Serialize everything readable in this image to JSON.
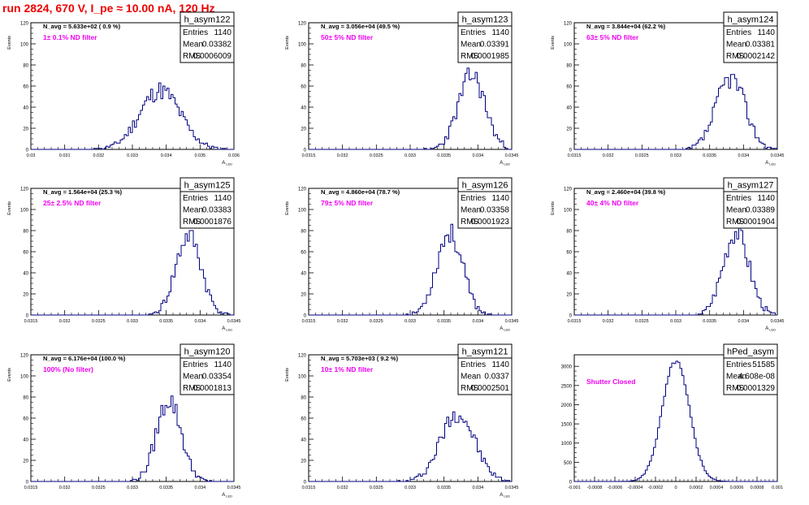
{
  "run_title": "run 2824,   670 V, I_pe ≈ 10.00 nA, 120 Hz",
  "colors": {
    "title": "#ee0000",
    "histogram": "#000080",
    "annotation": "#ee00ee",
    "axis": "#000000"
  },
  "chart_data": [
    {
      "type": "histogram",
      "name": "h_asym122",
      "entries": "1140",
      "mean": "0.03382",
      "rms": "0.0006009",
      "navg": "N_avg = 5.633e+02 ( 0.9 %)",
      "filter": "1± 0.1% ND filter",
      "xlabel": "A_LED",
      "ylabel": "Events",
      "xlim": [
        0.03,
        0.036
      ],
      "ylim": [
        0,
        120
      ],
      "xticks": [
        "0.03",
        "0.031",
        "0.032",
        "0.033",
        "0.034",
        "0.035",
        "0.036"
      ],
      "yticks": [
        "0",
        "20",
        "40",
        "60",
        "80",
        "100",
        "120"
      ],
      "center": 0.03382,
      "sigma": 0.0006009,
      "peak": 56,
      "seed": 11
    },
    {
      "type": "histogram",
      "name": "h_asym123",
      "entries": "1140",
      "mean": "0.03391",
      "rms": "0.0001985",
      "navg": "N_avg = 3.056e+04 (49.5 %)",
      "filter": "50± 5% ND filter",
      "xlabel": "A_LED",
      "ylabel": "Events",
      "xlim": [
        0.0315,
        0.0345
      ],
      "ylim": [
        0,
        120
      ],
      "xticks": [
        "0.0315",
        "0.032",
        "0.0325",
        "0.033",
        "0.0335",
        "0.034",
        "0.0345"
      ],
      "yticks": [
        "0",
        "20",
        "40",
        "60",
        "80",
        "100",
        "120"
      ],
      "center": 0.03391,
      "sigma": 0.0001985,
      "peak": 70,
      "seed": 23
    },
    {
      "type": "histogram",
      "name": "h_asym124",
      "entries": "1140",
      "mean": "0.03381",
      "rms": "0.0002142",
      "navg": "N_avg = 3.844e+04 (62.2 %)",
      "filter": "63± 5% ND filter",
      "xlabel": "A_LED",
      "ylabel": "Events",
      "xlim": [
        0.0315,
        0.0345
      ],
      "ylim": [
        0,
        120
      ],
      "xticks": [
        "0.0315",
        "0.032",
        "0.0325",
        "0.033",
        "0.0335",
        "0.034",
        "0.0345"
      ],
      "yticks": [
        "0",
        "20",
        "40",
        "60",
        "80",
        "100",
        "120"
      ],
      "center": 0.03381,
      "sigma": 0.0002142,
      "peak": 68,
      "seed": 37
    },
    {
      "type": "histogram",
      "name": "h_asym125",
      "entries": "1140",
      "mean": "0.03383",
      "rms": "0.0001876",
      "navg": "N_avg = 1.564e+04 (25.3 %)",
      "filter": "25± 2.5% ND filter",
      "xlabel": "A_LED",
      "ylabel": "Events",
      "xlim": [
        0.0315,
        0.0345
      ],
      "ylim": [
        0,
        120
      ],
      "xticks": [
        "0.0315",
        "0.032",
        "0.0325",
        "0.033",
        "0.0335",
        "0.034",
        "0.0345"
      ],
      "yticks": [
        "0",
        "20",
        "40",
        "60",
        "80",
        "100",
        "120"
      ],
      "center": 0.03383,
      "sigma": 0.0001876,
      "peak": 75,
      "seed": 41
    },
    {
      "type": "histogram",
      "name": "h_asym126",
      "entries": "1140",
      "mean": "0.03358",
      "rms": "0.0001923",
      "navg": "N_avg = 4.860e+04 (78.7 %)",
      "filter": "79± 5% ND filter",
      "xlabel": "A_LED",
      "ylabel": "Events",
      "xlim": [
        0.0315,
        0.0345
      ],
      "ylim": [
        0,
        120
      ],
      "xticks": [
        "0.0315",
        "0.032",
        "0.0325",
        "0.033",
        "0.0335",
        "0.034",
        "0.0345"
      ],
      "yticks": [
        "0",
        "20",
        "40",
        "60",
        "80",
        "100",
        "120"
      ],
      "center": 0.03358,
      "sigma": 0.0001923,
      "peak": 78,
      "seed": 53
    },
    {
      "type": "histogram",
      "name": "h_asym127",
      "entries": "1140",
      "mean": "0.03389",
      "rms": "0.0001904",
      "navg": "N_avg = 2.460e+04 (39.8 %)",
      "filter": "40± 4% ND filter",
      "xlabel": "A_LED",
      "ylabel": "Events",
      "xlim": [
        0.0315,
        0.0345
      ],
      "ylim": [
        0,
        120
      ],
      "xticks": [
        "0.0315",
        "0.032",
        "0.0325",
        "0.033",
        "0.0335",
        "0.034",
        "0.0345"
      ],
      "yticks": [
        "0",
        "20",
        "40",
        "60",
        "80",
        "100",
        "120"
      ],
      "center": 0.03389,
      "sigma": 0.0001904,
      "peak": 80,
      "seed": 67
    },
    {
      "type": "histogram",
      "name": "h_asym120",
      "entries": "1140",
      "mean": "0.03354",
      "rms": "0.0001813",
      "navg": "N_avg = 6.176e+04 (100.0 %)",
      "filter": "100% (No filter)",
      "xlabel": "A_LED",
      "ylabel": "Events",
      "xlim": [
        0.0315,
        0.0345
      ],
      "ylim": [
        0,
        120
      ],
      "xticks": [
        "0.0315",
        "0.032",
        "0.0325",
        "0.033",
        "0.0335",
        "0.034",
        "0.0345"
      ],
      "yticks": [
        "0",
        "20",
        "40",
        "60",
        "80",
        "100",
        "120"
      ],
      "center": 0.03354,
      "sigma": 0.0001813,
      "peak": 78,
      "seed": 79
    },
    {
      "type": "histogram",
      "name": "h_asym121",
      "entries": "1140",
      "mean": "0.0337",
      "rms": "0.0002501",
      "navg": "N_avg = 5.703e+03 ( 9.2 %)",
      "filter": "10± 1% ND filter",
      "xlabel": "A_LED",
      "ylabel": "Events",
      "xlim": [
        0.0315,
        0.0345
      ],
      "ylim": [
        0,
        120
      ],
      "xticks": [
        "0.0315",
        "0.032",
        "0.0325",
        "0.033",
        "0.0335",
        "0.034",
        "0.0345"
      ],
      "yticks": [
        "0",
        "20",
        "40",
        "60",
        "80",
        "100",
        "120"
      ],
      "center": 0.0337,
      "sigma": 0.0002501,
      "peak": 65,
      "seed": 97
    },
    {
      "type": "histogram",
      "name": "hPed_asym",
      "entries": "51585",
      "mean": "4.608e-08",
      "rms": "0.0001329",
      "navg": "",
      "filter": "Shutter Closed",
      "xlabel": "",
      "ylabel": "",
      "xlim": [
        -0.001,
        0.001
      ],
      "ylim": [
        0,
        3300
      ],
      "xticks": [
        "-0.001",
        "-0.0008",
        "-0.0006",
        "-0.0004",
        "-0.0002",
        "0",
        "0.0002",
        "0.0004",
        "0.0006",
        "0.0008",
        "0.001"
      ],
      "yticks": [
        "0",
        "500",
        "1000",
        "1500",
        "2000",
        "2500",
        "3000"
      ],
      "center": 0.0,
      "sigma": 0.0001329,
      "peak": 3130,
      "seed": 5
    }
  ]
}
